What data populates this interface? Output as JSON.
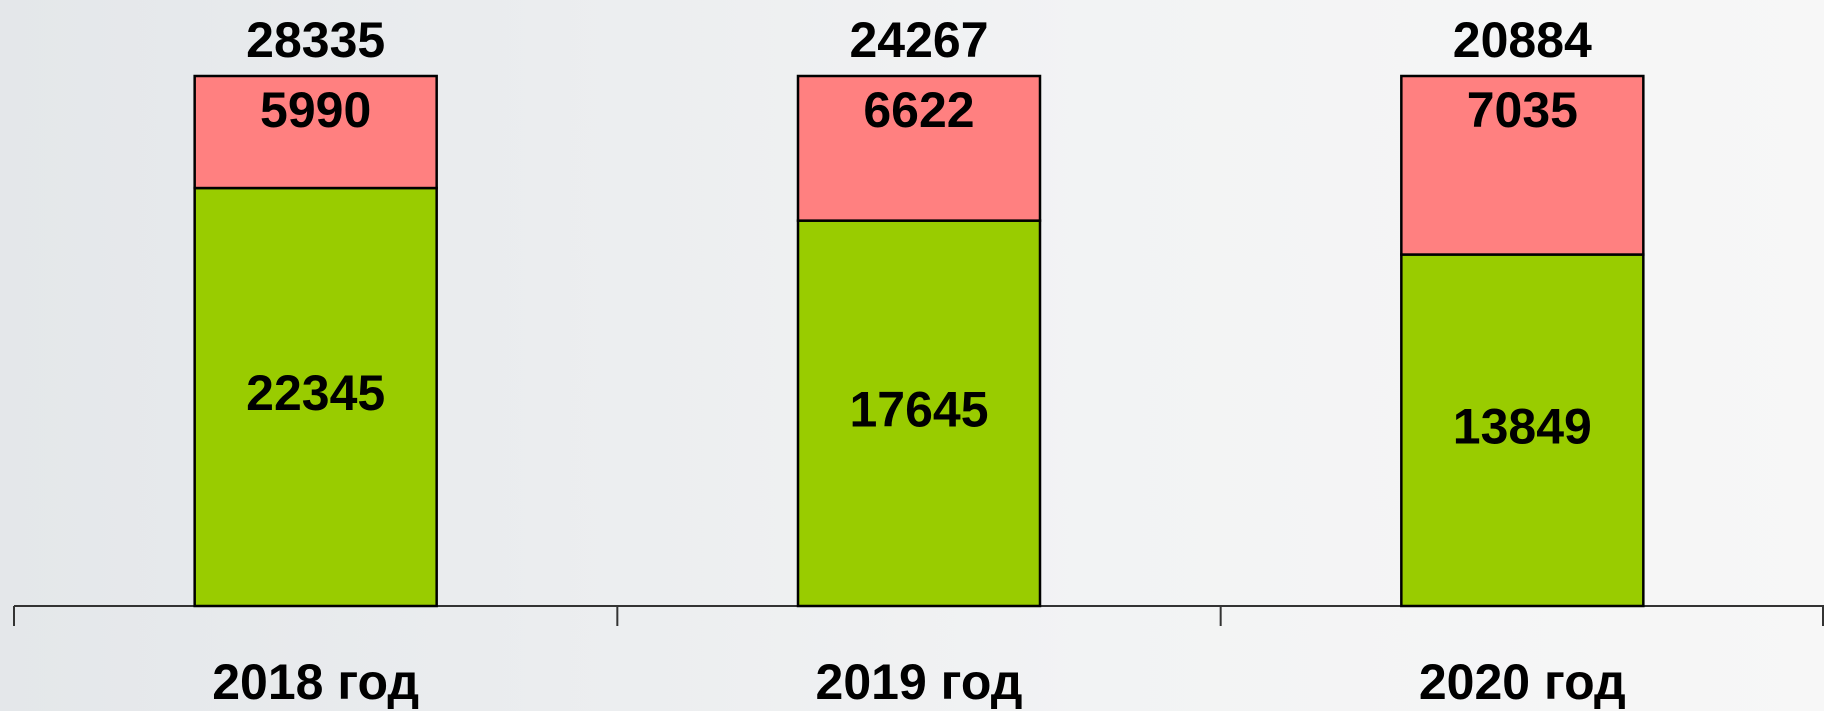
{
  "chart_data": {
    "type": "stacked_bar_percent",
    "categories": [
      "2018 год",
      "2019 год",
      "2020 год"
    ],
    "series": [
      {
        "color": "#99cc00",
        "values": [
          22345,
          17645,
          13849
        ]
      },
      {
        "color": "#ff8080",
        "values": [
          5990,
          6622,
          7035
        ]
      }
    ],
    "totals": [
      28335,
      24267,
      20884
    ]
  }
}
